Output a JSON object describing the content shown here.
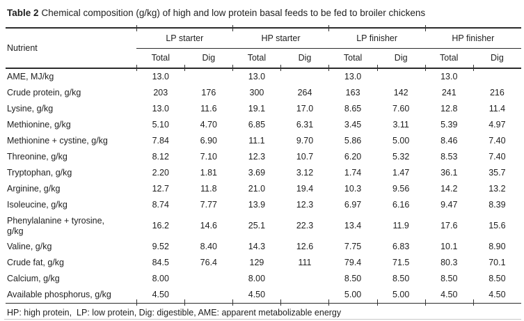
{
  "title": {
    "label": "Table 2",
    "text": "Chemical composition (g/kg) of high and low protein basal feeds to be fed to broiler chickens"
  },
  "table": {
    "nutrient_header": "Nutrient",
    "groups": [
      {
        "label": "LP starter"
      },
      {
        "label": "HP starter"
      },
      {
        "label": "LP finisher"
      },
      {
        "label": "HP finisher"
      }
    ],
    "subheaders": [
      "Total",
      "Dig"
    ],
    "rows": [
      {
        "nutrient": "AME, MJ/kg",
        "values": [
          "13.0",
          "",
          "13.0",
          "",
          "13.0",
          "",
          "13.0",
          ""
        ]
      },
      {
        "nutrient": "Crude protein, g/kg",
        "values": [
          "203",
          "176",
          "300",
          "264",
          "163",
          "142",
          "241",
          "216"
        ]
      },
      {
        "nutrient": "Lysine, g/kg",
        "values": [
          "13.0",
          "11.6",
          "19.1",
          "17.0",
          "8.65",
          "7.60",
          "12.8",
          "11.4"
        ]
      },
      {
        "nutrient": "Methionine, g/kg",
        "values": [
          "5.10",
          "4.70",
          "6.85",
          "6.31",
          "3.45",
          "3.11",
          "5.39",
          "4.97"
        ]
      },
      {
        "nutrient": "Methionine + cystine, g/kg",
        "values": [
          "7.84",
          "6.90",
          "11.1",
          "9.70",
          "5.86",
          "5.00",
          "8.46",
          "7.40"
        ]
      },
      {
        "nutrient": "Threonine, g/kg",
        "values": [
          "8.12",
          "7.10",
          "12.3",
          "10.7",
          "6.20",
          "5.32",
          "8.53",
          "7.40"
        ]
      },
      {
        "nutrient": "Tryptophan, g/kg",
        "values": [
          "2.20",
          "1.81",
          "3.69",
          "3.12",
          "1.74",
          "1.47",
          "36.1",
          "35.7"
        ]
      },
      {
        "nutrient": "Arginine, g/kg",
        "values": [
          "12.7",
          "11.8",
          "21.0",
          "19.4",
          "10.3",
          "9.56",
          "14.2",
          "13.2"
        ]
      },
      {
        "nutrient": "Isoleucine, g/kg",
        "values": [
          "8.74",
          "7.77",
          "13.9",
          "12.3",
          "6.97",
          "6.16",
          "9.47",
          "8.39"
        ]
      },
      {
        "nutrient": "Phenylalanine + tyrosine, g/kg",
        "values": [
          "16.2",
          "14.6",
          "25.1",
          "22.3",
          "13.4",
          "11.9",
          "17.6",
          "15.6"
        ]
      },
      {
        "nutrient": "Valine, g/kg",
        "values": [
          "9.52",
          "8.40",
          "14.3",
          "12.6",
          "7.75",
          "6.83",
          "10.1",
          "8.90"
        ]
      },
      {
        "nutrient": "Crude fat, g/kg",
        "values": [
          "84.5",
          "76.4",
          "129",
          "111",
          "79.4",
          "71.5",
          "80.3",
          "70.1"
        ]
      },
      {
        "nutrient": "Calcium, g/kg",
        "values": [
          "8.00",
          "",
          "8.00",
          "",
          "8.50",
          "8.50",
          "8.50",
          "8.50"
        ]
      },
      {
        "nutrient": "Available phosphorus, g/kg",
        "values": [
          "4.50",
          "",
          "4.50",
          "",
          "5.00",
          "5.00",
          "4.50",
          "4.50"
        ]
      }
    ]
  },
  "footnote": "HP: high protein,  LP: low protein, Dig: digestible, AME: apparent metabolizable energy"
}
